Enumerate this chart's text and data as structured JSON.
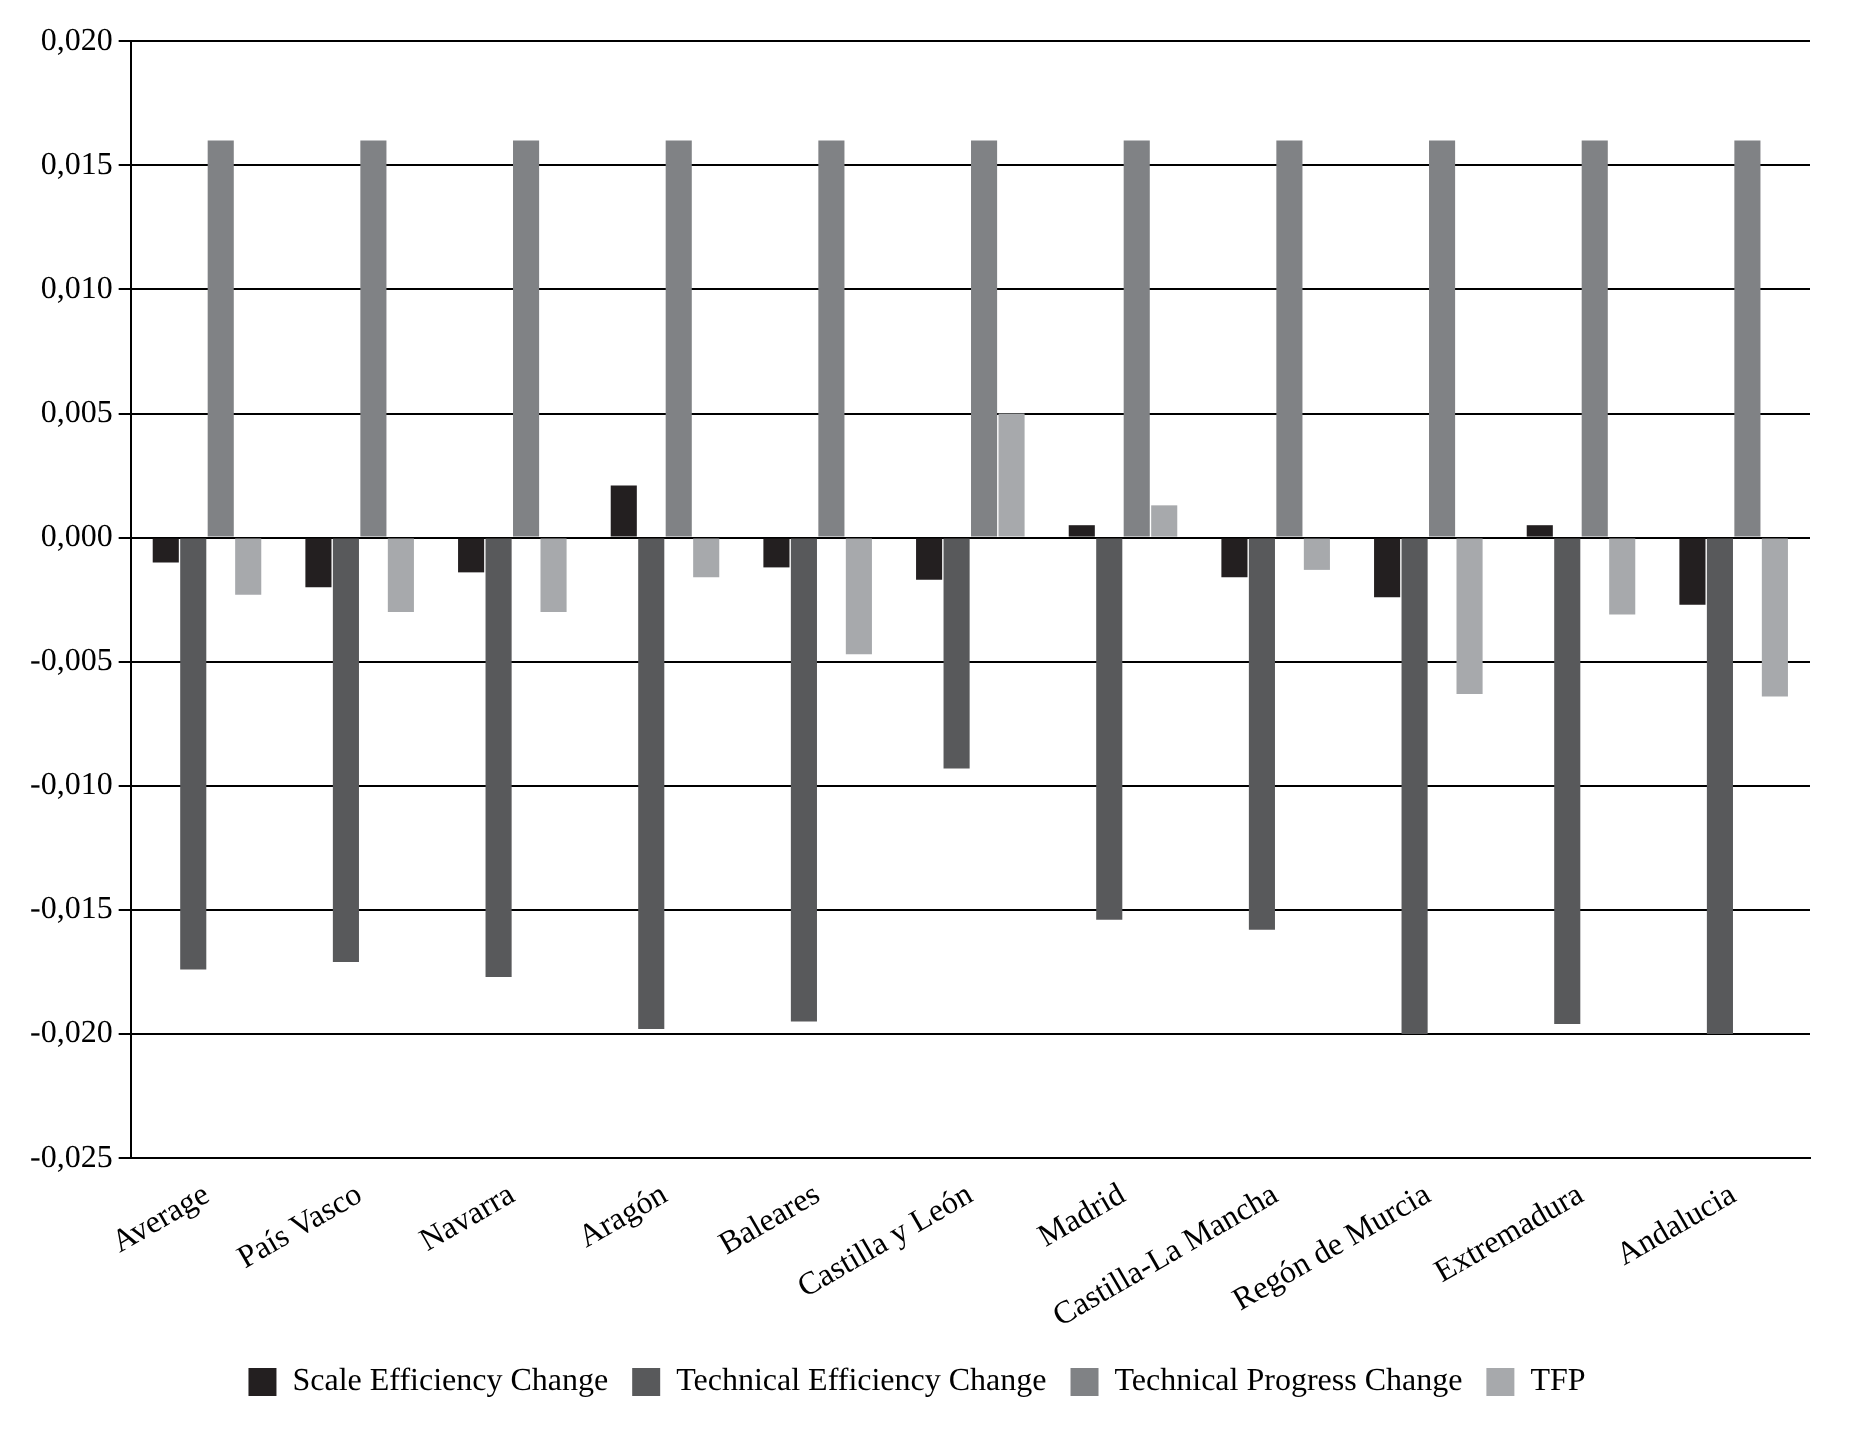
{
  "chart_data": {
    "type": "bar",
    "categories": [
      "Average",
      "País Vasco",
      "Navarra",
      "Aragón",
      "Baleares",
      "Castilla y León",
      "Madrid",
      "Castilla-La Mancha",
      "Regón de Murcia",
      "Extremadura",
      "Andalucia"
    ],
    "series": [
      {
        "name": "Scale Efficiency Change",
        "color": "#231f20",
        "values": [
          -0.001,
          -0.002,
          -0.0014,
          0.0021,
          -0.0012,
          -0.0017,
          0.0005,
          -0.0016,
          -0.0024,
          0.0005,
          -0.0027
        ]
      },
      {
        "name": "Technical Efficiency Change",
        "color": "#58595b",
        "values": [
          -0.0174,
          -0.0171,
          -0.0177,
          -0.0198,
          -0.0195,
          -0.0093,
          -0.0154,
          -0.0158,
          -0.02,
          -0.0196,
          -0.02
        ]
      },
      {
        "name": "Technical Progress Change",
        "color": "#808285",
        "values": [
          0.016,
          0.016,
          0.016,
          0.016,
          0.016,
          0.016,
          0.016,
          0.016,
          0.016,
          0.016,
          0.016
        ]
      },
      {
        "name": "TFP",
        "color": "#a7a9ac",
        "values": [
          -0.0023,
          -0.003,
          -0.003,
          -0.0016,
          -0.0047,
          0.005,
          0.0013,
          -0.0013,
          -0.0063,
          -0.0031,
          -0.0064
        ]
      }
    ],
    "ylim": [
      -0.025,
      0.02
    ],
    "yticks": [
      {
        "value": -0.025,
        "label": "-0,025"
      },
      {
        "value": -0.02,
        "label": "-0,020"
      },
      {
        "value": -0.015,
        "label": "-0,015"
      },
      {
        "value": -0.01,
        "label": "-0,010"
      },
      {
        "value": -0.005,
        "label": "-0,005"
      },
      {
        "value": 0,
        "label": "0,000"
      },
      {
        "value": 0.005,
        "label": "0,005"
      },
      {
        "value": 0.01,
        "label": "0,010"
      },
      {
        "value": 0.015,
        "label": "0,015"
      },
      {
        "value": 0.02,
        "label": "0,020"
      }
    ],
    "grid": "y",
    "legend": "bottom"
  }
}
